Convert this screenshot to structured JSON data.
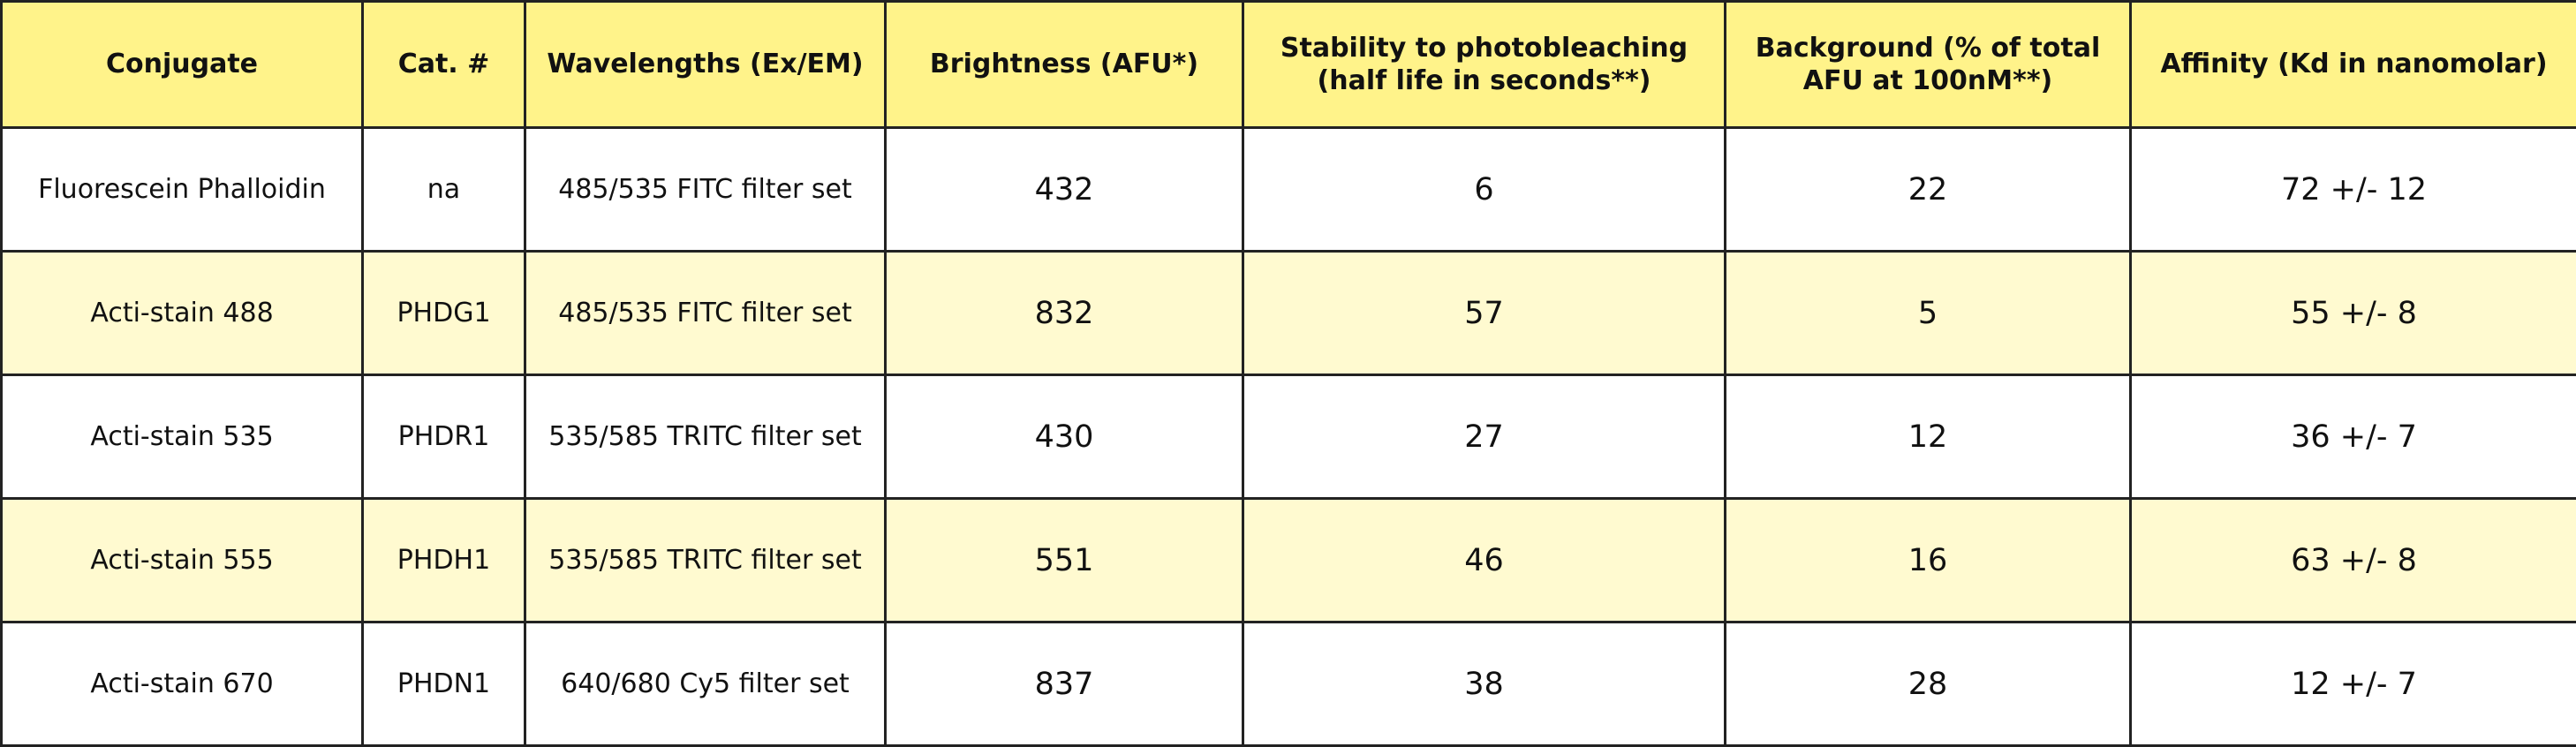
{
  "table": {
    "headers": [
      "Conjugate",
      "Cat. #",
      "Wavelengths (Ex/EM)",
      "Brightness (AFU*)",
      "Stability to photobleaching (half life in seconds**)",
      "Background (% of total AFU at 100nM**)",
      "Affinity (Kd in nanomolar)"
    ],
    "rows": [
      [
        "Fluorescein Phalloidin",
        "na",
        "485/535 FITC filter set",
        "432",
        "6",
        "22",
        "72 +/- 12"
      ],
      [
        "Acti-stain 488",
        "PHDG1",
        "485/535 FITC filter set",
        "832",
        "57",
        "5",
        "55 +/- 8"
      ],
      [
        "Acti-stain 535",
        "PHDR1",
        "535/585 TRITC filter set",
        "430",
        "27",
        "12",
        "36 +/- 7"
      ],
      [
        "Acti-stain 555",
        "PHDH1",
        "535/585 TRITC filter set",
        "551",
        "46",
        "16",
        "63 +/- 8"
      ],
      [
        "Acti-stain 670",
        "PHDN1",
        "640/680 Cy5 filter set",
        "837",
        "38",
        "28",
        "12 +/- 7"
      ]
    ]
  }
}
